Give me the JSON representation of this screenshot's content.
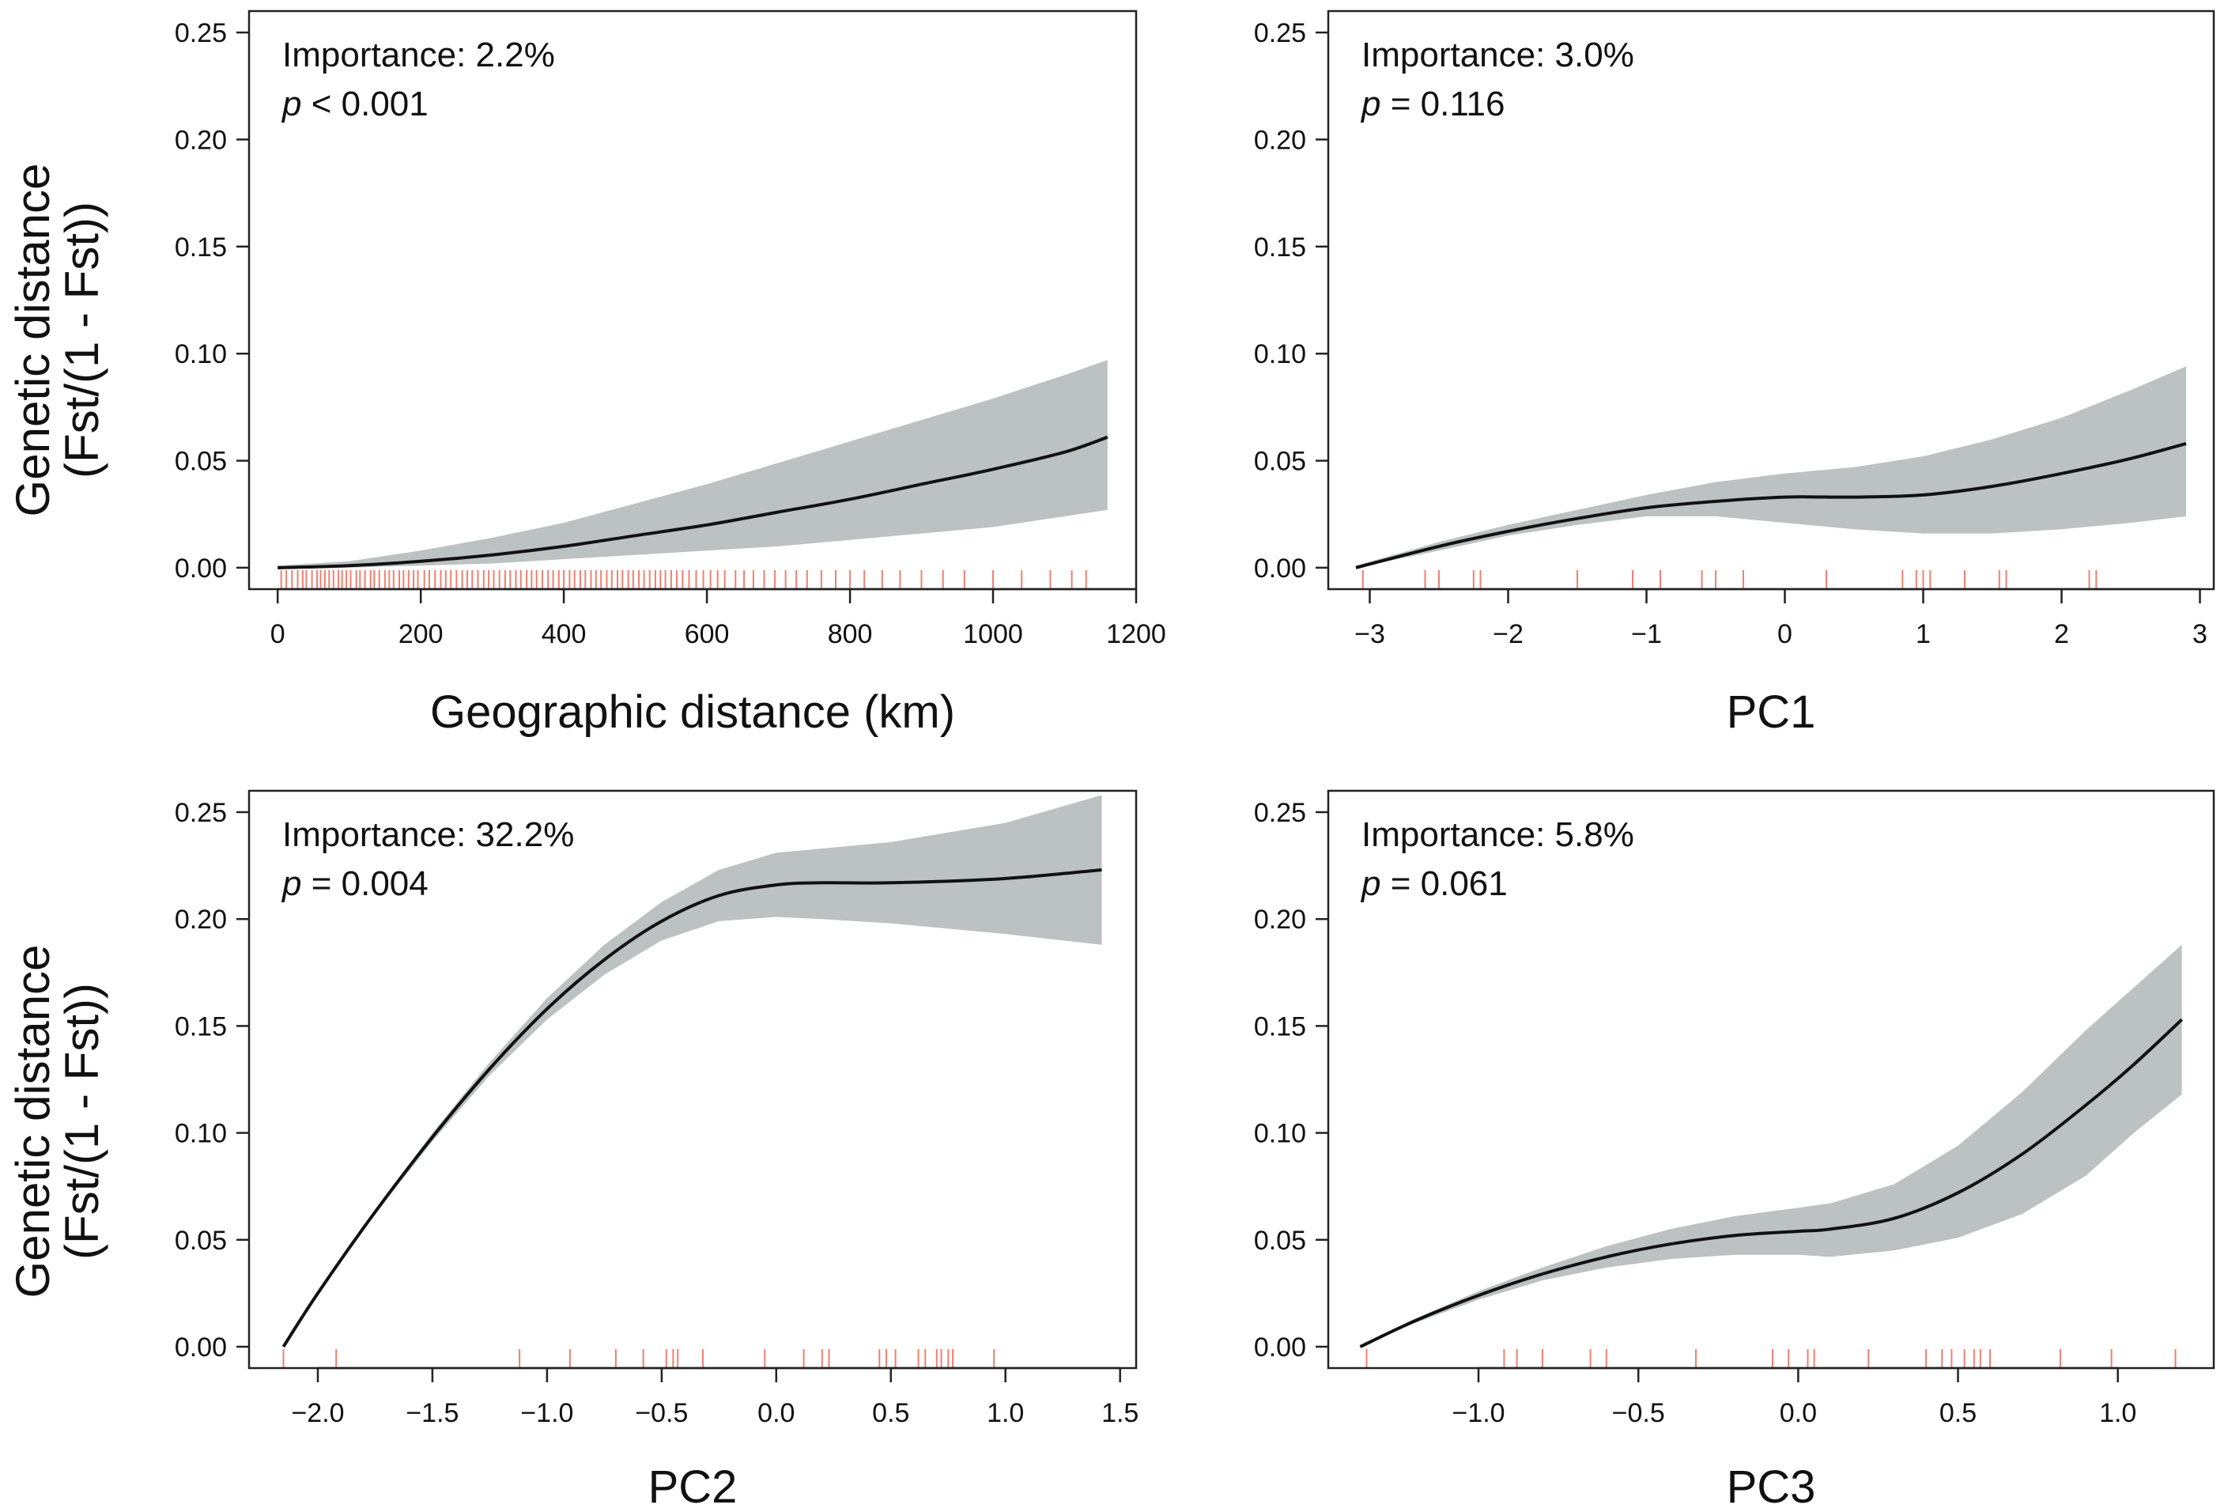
{
  "figure": {
    "ylabel_line1": "Genetic distance",
    "ylabel_line2": "(Fst/(1 - Fst))"
  },
  "chart_data": [
    {
      "type": "line",
      "id": "geo",
      "title": "",
      "xlabel": "Geographic distance (km)",
      "ylabel": "Genetic distance (Fst/(1 - Fst))",
      "importance": "Importance: 2.2%",
      "p_symbol": "p",
      "p_rest": " < 0.001",
      "xlim": [
        -40,
        1200
      ],
      "ylim": [
        -0.01,
        0.26
      ],
      "xticks": [
        0,
        200,
        400,
        600,
        800,
        1000,
        1200
      ],
      "xtick_labels": [
        "0",
        "200",
        "400",
        "600",
        "800",
        "1000",
        "1200"
      ],
      "yticks": [
        0.0,
        0.05,
        0.1,
        0.15,
        0.2,
        0.25
      ],
      "ytick_labels": [
        "0.00",
        "0.05",
        "0.10",
        "0.15",
        "0.20",
        "0.25"
      ],
      "series": [
        {
          "name": "fit",
          "x": [
            0,
            100,
            200,
            300,
            400,
            500,
            600,
            700,
            800,
            900,
            1000,
            1100,
            1160
          ],
          "y": [
            0.0,
            0.001,
            0.003,
            0.006,
            0.01,
            0.015,
            0.02,
            0.026,
            0.032,
            0.039,
            0.046,
            0.054,
            0.061
          ]
        },
        {
          "name": "upper",
          "x": [
            0,
            100,
            200,
            300,
            400,
            500,
            600,
            700,
            800,
            900,
            1000,
            1100,
            1160
          ],
          "y": [
            0.001,
            0.003,
            0.008,
            0.014,
            0.021,
            0.03,
            0.039,
            0.049,
            0.059,
            0.069,
            0.079,
            0.09,
            0.097
          ]
        },
        {
          "name": "lower",
          "x": [
            0,
            100,
            200,
            300,
            400,
            500,
            600,
            700,
            800,
            900,
            1000,
            1100,
            1160
          ],
          "y": [
            0.0,
            0.0,
            0.001,
            0.002,
            0.004,
            0.006,
            0.008,
            0.01,
            0.013,
            0.016,
            0.019,
            0.024,
            0.027
          ]
        }
      ],
      "rug": [
        5,
        12,
        20,
        28,
        35,
        40,
        48,
        55,
        60,
        66,
        72,
        78,
        85,
        90,
        96,
        102,
        110,
        115,
        122,
        130,
        135,
        142,
        150,
        156,
        162,
        170,
        176,
        183,
        190,
        196,
        205,
        212,
        220,
        228,
        235,
        242,
        250,
        258,
        265,
        272,
        280,
        288,
        295,
        302,
        310,
        318,
        325,
        333,
        340,
        348,
        355,
        362,
        370,
        378,
        385,
        393,
        400,
        408,
        415,
        423,
        430,
        438,
        445,
        452,
        460,
        467,
        475,
        482,
        490,
        497,
        505,
        512,
        520,
        528,
        535,
        542,
        550,
        558,
        566,
        575,
        585,
        595,
        605,
        615,
        625,
        640,
        652,
        665,
        680,
        695,
        710,
        725,
        740,
        760,
        780,
        800,
        820,
        845,
        870,
        900,
        930,
        960,
        1000,
        1040,
        1080,
        1110,
        1130
      ]
    },
    {
      "type": "line",
      "id": "pc1",
      "title": "",
      "xlabel": "PC1",
      "ylabel": "",
      "importance": "Importance: 3.0%",
      "p_symbol": "p",
      "p_rest": " = 0.116",
      "xlim": [
        -3.3,
        3.1
      ],
      "ylim": [
        -0.01,
        0.26
      ],
      "xticks": [
        -3,
        -2,
        -1,
        0,
        1,
        2,
        3
      ],
      "xtick_labels": [
        "−3",
        "−2",
        "−1",
        "0",
        "1",
        "2",
        "3"
      ],
      "yticks": [
        0.0,
        0.05,
        0.1,
        0.15,
        0.2,
        0.25
      ],
      "ytick_labels": [
        "0.00",
        "0.05",
        "0.10",
        "0.15",
        "0.20",
        "0.25"
      ],
      "series": [
        {
          "name": "fit",
          "x": [
            -3.1,
            -2.5,
            -2.0,
            -1.5,
            -1.0,
            -0.5,
            0.0,
            0.5,
            1.0,
            1.5,
            2.0,
            2.5,
            2.9
          ],
          "y": [
            0.0,
            0.01,
            0.017,
            0.023,
            0.028,
            0.031,
            0.033,
            0.033,
            0.034,
            0.038,
            0.044,
            0.051,
            0.058
          ]
        },
        {
          "name": "upper",
          "x": [
            -3.1,
            -2.5,
            -2.0,
            -1.5,
            -1.0,
            -0.5,
            0.0,
            0.5,
            1.0,
            1.5,
            2.0,
            2.5,
            2.9
          ],
          "y": [
            0.001,
            0.012,
            0.02,
            0.027,
            0.034,
            0.04,
            0.044,
            0.047,
            0.052,
            0.06,
            0.07,
            0.083,
            0.094
          ]
        },
        {
          "name": "lower",
          "x": [
            -3.1,
            -2.5,
            -2.0,
            -1.5,
            -1.0,
            -0.5,
            0.0,
            0.5,
            1.0,
            1.5,
            2.0,
            2.5,
            2.9
          ],
          "y": [
            0.0,
            0.008,
            0.015,
            0.02,
            0.024,
            0.024,
            0.021,
            0.018,
            0.016,
            0.016,
            0.018,
            0.021,
            0.024
          ]
        }
      ],
      "rug": [
        -3.05,
        -2.6,
        -2.5,
        -2.25,
        -2.2,
        -1.5,
        -1.1,
        -0.9,
        -0.6,
        -0.5,
        -0.3,
        0.3,
        0.3,
        0.85,
        0.95,
        1.0,
        1.05,
        1.3,
        1.55,
        1.6,
        2.2,
        2.25
      ]
    },
    {
      "type": "line",
      "id": "pc2",
      "title": "",
      "xlabel": "PC2",
      "ylabel": "Genetic distance (Fst/(1 - Fst))",
      "importance": "Importance: 32.2%",
      "p_symbol": "p",
      "p_rest": " = 0.004",
      "xlim": [
        -2.3,
        1.57
      ],
      "ylim": [
        -0.01,
        0.26
      ],
      "xticks": [
        -2.0,
        -1.5,
        -1.0,
        -0.5,
        0.0,
        0.5,
        1.0,
        1.5
      ],
      "xtick_labels": [
        "−2.0",
        "−1.5",
        "−1.0",
        "−0.5",
        "0.0",
        "0.5",
        "1.0",
        "1.5"
      ],
      "yticks": [
        0.0,
        0.05,
        0.1,
        0.15,
        0.2,
        0.25
      ],
      "ytick_labels": [
        "0.00",
        "0.05",
        "0.10",
        "0.15",
        "0.20",
        "0.25"
      ],
      "series": [
        {
          "name": "fit",
          "x": [
            -2.15,
            -2.0,
            -1.75,
            -1.5,
            -1.25,
            -1.0,
            -0.75,
            -0.5,
            -0.25,
            0.0,
            0.2,
            0.5,
            1.0,
            1.42
          ],
          "y": [
            0.0,
            0.025,
            0.063,
            0.098,
            0.13,
            0.158,
            0.181,
            0.199,
            0.211,
            0.216,
            0.217,
            0.217,
            0.219,
            0.223
          ]
        },
        {
          "name": "upper",
          "x": [
            -2.15,
            -2.0,
            -1.75,
            -1.5,
            -1.25,
            -1.0,
            -0.75,
            -0.5,
            -0.25,
            0.0,
            0.2,
            0.5,
            1.0,
            1.42
          ],
          "y": [
            0.0,
            0.025,
            0.064,
            0.1,
            0.133,
            0.163,
            0.188,
            0.208,
            0.223,
            0.231,
            0.233,
            0.236,
            0.245,
            0.258
          ]
        },
        {
          "name": "lower",
          "x": [
            -2.15,
            -2.0,
            -1.75,
            -1.5,
            -1.25,
            -1.0,
            -0.75,
            -0.5,
            -0.25,
            0.0,
            0.2,
            0.5,
            1.0,
            1.42
          ],
          "y": [
            0.0,
            0.025,
            0.062,
            0.096,
            0.127,
            0.153,
            0.174,
            0.19,
            0.199,
            0.201,
            0.2,
            0.198,
            0.193,
            0.188
          ]
        }
      ],
      "rug": [
        -2.15,
        -1.92,
        -1.12,
        -0.9,
        -0.7,
        -0.58,
        -0.48,
        -0.45,
        -0.43,
        -0.32,
        -0.05,
        0.12,
        0.2,
        0.23,
        0.45,
        0.48,
        0.52,
        0.62,
        0.65,
        0.7,
        0.72,
        0.75,
        0.77,
        0.95
      ]
    },
    {
      "type": "line",
      "id": "pc3",
      "title": "",
      "xlabel": "PC3",
      "ylabel": "",
      "importance": "Importance: 5.8%",
      "p_symbol": "p",
      "p_rest": " = 0.061",
      "xlim": [
        -1.47,
        1.3
      ],
      "ylim": [
        -0.01,
        0.26
      ],
      "xticks": [
        -1.0,
        -0.5,
        0.0,
        0.5,
        1.0
      ],
      "xtick_labels": [
        "−1.0",
        "−0.5",
        "0.0",
        "0.5",
        "1.0"
      ],
      "yticks": [
        0.0,
        0.05,
        0.1,
        0.15,
        0.2,
        0.25
      ],
      "ytick_labels": [
        "0.00",
        "0.05",
        "0.10",
        "0.15",
        "0.20",
        "0.25"
      ],
      "series": [
        {
          "name": "fit",
          "x": [
            -1.37,
            -1.2,
            -1.0,
            -0.8,
            -0.6,
            -0.4,
            -0.2,
            0.0,
            0.1,
            0.3,
            0.5,
            0.7,
            0.9,
            1.05,
            1.2
          ],
          "y": [
            0.0,
            0.012,
            0.024,
            0.034,
            0.042,
            0.048,
            0.052,
            0.054,
            0.055,
            0.06,
            0.072,
            0.09,
            0.113,
            0.132,
            0.153
          ]
        },
        {
          "name": "upper",
          "x": [
            -1.37,
            -1.2,
            -1.0,
            -0.8,
            -0.6,
            -0.4,
            -0.2,
            0.0,
            0.1,
            0.3,
            0.5,
            0.7,
            0.9,
            1.05,
            1.2
          ],
          "y": [
            0.0,
            0.013,
            0.026,
            0.037,
            0.047,
            0.055,
            0.061,
            0.065,
            0.067,
            0.076,
            0.094,
            0.119,
            0.148,
            0.168,
            0.188
          ]
        },
        {
          "name": "lower",
          "x": [
            -1.37,
            -1.2,
            -1.0,
            -0.8,
            -0.6,
            -0.4,
            -0.2,
            0.0,
            0.1,
            0.3,
            0.5,
            0.7,
            0.9,
            1.05,
            1.2
          ],
          "y": [
            0.0,
            0.011,
            0.022,
            0.031,
            0.037,
            0.041,
            0.043,
            0.043,
            0.042,
            0.045,
            0.051,
            0.062,
            0.08,
            0.1,
            0.118
          ]
        }
      ],
      "rug": [
        -1.35,
        -0.92,
        -0.88,
        -0.8,
        -0.65,
        -0.6,
        -0.32,
        -0.08,
        -0.03,
        0.03,
        0.05,
        0.22,
        0.4,
        0.45,
        0.48,
        0.52,
        0.55,
        0.57,
        0.6,
        0.82,
        0.98,
        1.18
      ]
    }
  ]
}
